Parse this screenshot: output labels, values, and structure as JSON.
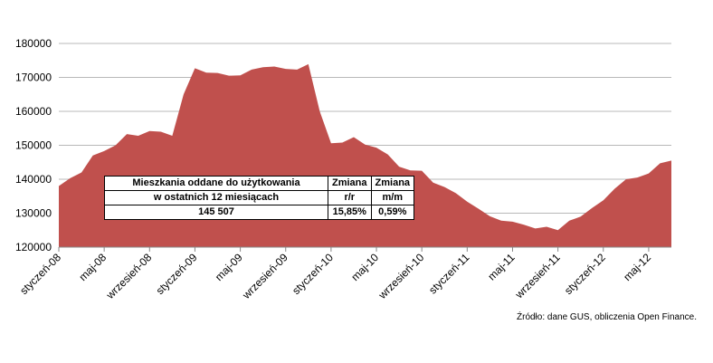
{
  "chart_data": {
    "type": "area",
    "title": "",
    "xlabel": "",
    "ylabel": "",
    "ylim": [
      120000,
      180000
    ],
    "yticks": [
      120000,
      130000,
      140000,
      150000,
      160000,
      170000,
      180000
    ],
    "ytick_labels": [
      "120000",
      "130000",
      "140000",
      "150000",
      "160000",
      "170000",
      "180000"
    ],
    "grid": true,
    "color": "#c0504d",
    "x_tick_labels": [
      "styczeń-08",
      "maj-08",
      "wrzesień-08",
      "styczeń-09",
      "maj-09",
      "wrzesień-09",
      "styczeń-10",
      "maj-10",
      "wrzesień-10",
      "styczeń-11",
      "maj-11",
      "wrzesień-11",
      "styczeń-12",
      "maj-12"
    ],
    "x": [
      "2008-01",
      "2008-02",
      "2008-03",
      "2008-04",
      "2008-05",
      "2008-06",
      "2008-07",
      "2008-08",
      "2008-09",
      "2008-10",
      "2008-11",
      "2008-12",
      "2009-01",
      "2009-02",
      "2009-03",
      "2009-04",
      "2009-05",
      "2009-06",
      "2009-07",
      "2009-08",
      "2009-09",
      "2009-10",
      "2009-11",
      "2009-12",
      "2010-01",
      "2010-02",
      "2010-03",
      "2010-04",
      "2010-05",
      "2010-06",
      "2010-07",
      "2010-08",
      "2010-09",
      "2010-10",
      "2010-11",
      "2010-12",
      "2011-01",
      "2011-02",
      "2011-03",
      "2011-04",
      "2011-05",
      "2011-06",
      "2011-07",
      "2011-08",
      "2011-09",
      "2011-10",
      "2011-11",
      "2011-12",
      "2012-01",
      "2012-02",
      "2012-03",
      "2012-04",
      "2012-05",
      "2012-06",
      "2012-07"
    ],
    "values": [
      138000,
      140300,
      142000,
      147000,
      148300,
      150000,
      153300,
      152800,
      154200,
      154000,
      152800,
      165000,
      172700,
      171400,
      171300,
      170500,
      170600,
      172300,
      173000,
      173200,
      172500,
      172300,
      173900,
      160000,
      150600,
      150800,
      152400,
      150200,
      149300,
      147300,
      143700,
      142600,
      142500,
      139000,
      137700,
      135900,
      133400,
      131300,
      129100,
      127800,
      127500,
      126600,
      125500,
      126000,
      125000,
      127800,
      129000,
      131500,
      133800,
      137200,
      140000,
      140500,
      141700,
      144700,
      145500
    ]
  },
  "infobox": {
    "header": [
      "Mieszkania oddane do użytkowania",
      "w ostatnich 12 miesiącach"
    ],
    "col2_header": [
      "Zmiana",
      "r/r"
    ],
    "col3_header": [
      "Zmiana",
      "m/m"
    ],
    "value": "145 507",
    "change_yoy": "15,85%",
    "change_mom": "0,59%"
  },
  "source": "Źródło: dane GUS, obliczenia Open Finance."
}
